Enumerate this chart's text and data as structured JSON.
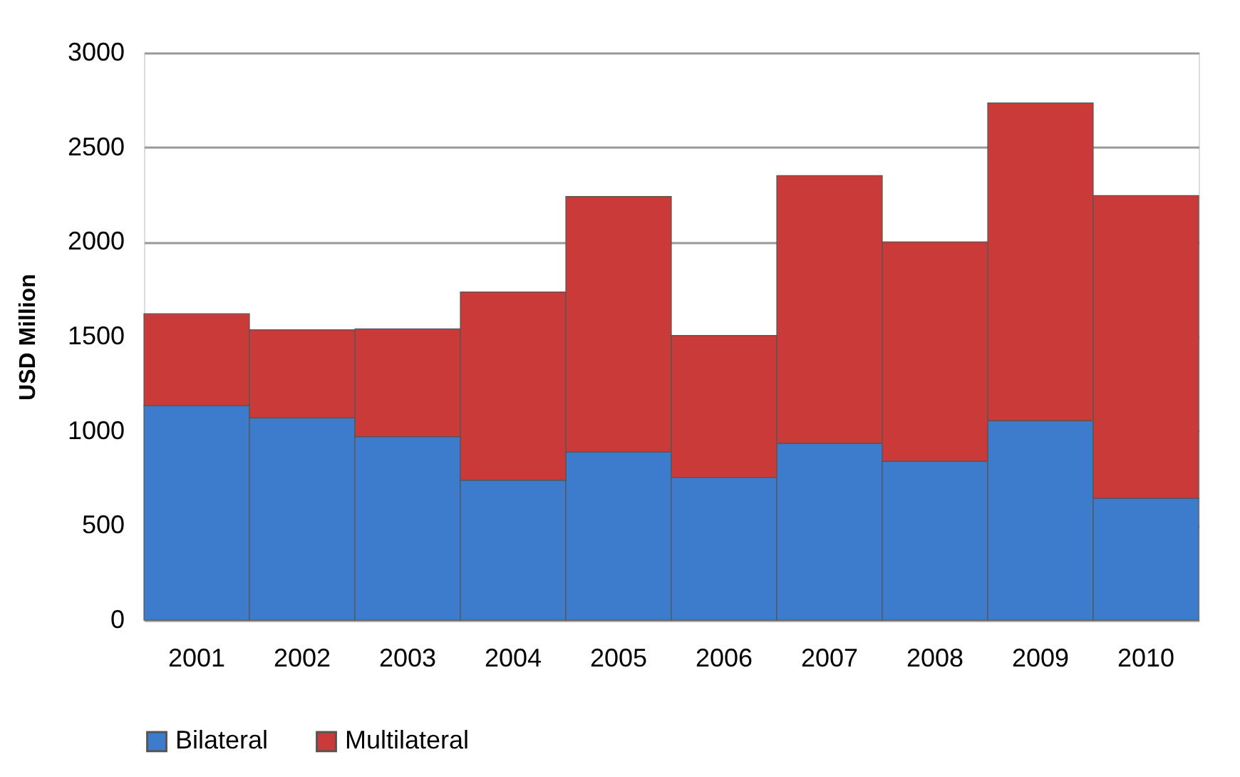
{
  "chart_data": {
    "type": "bar",
    "stacked": true,
    "ylabel": "USD Million",
    "categories": [
      "2001",
      "2002",
      "2003",
      "2004",
      "2005",
      "2006",
      "2007",
      "2008",
      "2009",
      "2010"
    ],
    "series": [
      {
        "name": "Bilateral",
        "color": "#3d7ccc",
        "values": [
          1135,
          1070,
          970,
          740,
          890,
          755,
          935,
          840,
          1055,
          645
        ]
      },
      {
        "name": "Multilateral",
        "color": "#c93a38",
        "values": [
          485,
          465,
          570,
          995,
          1350,
          750,
          1415,
          1160,
          1680,
          1600
        ]
      }
    ],
    "ylim": [
      0,
      3000
    ],
    "yticks": [
      0,
      500,
      1000,
      1500,
      2000,
      2500,
      3000
    ],
    "grid": "y",
    "legend": "bottom"
  }
}
